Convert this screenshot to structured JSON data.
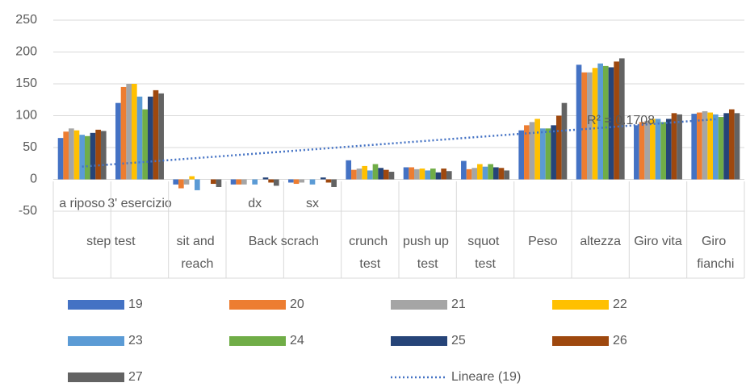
{
  "chart_data": {
    "type": "bar",
    "categories": [
      "a riposo",
      "3' esercizio",
      null,
      "dx",
      "sx",
      null,
      null,
      null,
      null,
      null,
      null,
      null
    ],
    "groups": [
      {
        "label": "step test",
        "span": 2
      },
      {
        "label": "sit and reach",
        "span": 1
      },
      {
        "label": "Back scrach",
        "span": 2
      },
      {
        "label": "crunch test",
        "span": 1
      },
      {
        "label": "push up test",
        "span": 1
      },
      {
        "label": "squot test",
        "span": 1
      },
      {
        "label": "Peso",
        "span": 1
      },
      {
        "label": "altezza",
        "span": 1
      },
      {
        "label": "Giro vita",
        "span": 1
      },
      {
        "label": "Giro fianchi",
        "span": 1
      }
    ],
    "series": [
      {
        "name": "19",
        "color": "#4472c4",
        "values": [
          65,
          120,
          -8,
          -8,
          -5,
          30,
          19,
          29,
          77,
          180,
          85,
          103
        ]
      },
      {
        "name": "20",
        "color": "#ed7d31",
        "values": [
          75,
          145,
          -14,
          -8,
          -7,
          15,
          19,
          16,
          85,
          168,
          90,
          105
        ]
      },
      {
        "name": "21",
        "color": "#a5a5a5",
        "values": [
          80,
          150,
          -8,
          -8,
          -5,
          17,
          16,
          18,
          90,
          168,
          92,
          107
        ]
      },
      {
        "name": "22",
        "color": "#ffc000",
        "values": [
          77,
          150,
          5,
          0,
          0,
          21,
          17,
          24,
          95,
          175,
          95,
          105
        ]
      },
      {
        "name": "23",
        "color": "#5b9bd5",
        "values": [
          70,
          130,
          -17,
          -8,
          -8,
          14,
          14,
          20,
          80,
          182,
          95,
          102
        ]
      },
      {
        "name": "24",
        "color": "#70ad47",
        "values": [
          68,
          110,
          0,
          0,
          0,
          24,
          17,
          24,
          80,
          178,
          90,
          98
        ]
      },
      {
        "name": "25",
        "color": "#264478",
        "values": [
          73,
          130,
          0,
          3,
          3,
          18,
          11,
          19,
          85,
          176,
          95,
          104
        ]
      },
      {
        "name": "26",
        "color": "#9e480e",
        "values": [
          78,
          140,
          -7,
          -5,
          -5,
          15,
          17,
          18,
          100,
          185,
          104,
          110
        ]
      },
      {
        "name": "27",
        "color": "#636363",
        "values": [
          76,
          135,
          -12,
          -10,
          -12,
          12,
          13,
          14,
          120,
          190,
          102,
          104
        ]
      }
    ],
    "trendline": {
      "label": "Lineare (19)",
      "annotation": "R² = 0.1708",
      "color": "#4472c4"
    },
    "ylim": [
      -50,
      250
    ],
    "yticks": [
      -50,
      0,
      50,
      100,
      150,
      200,
      250
    ],
    "grid": true
  }
}
